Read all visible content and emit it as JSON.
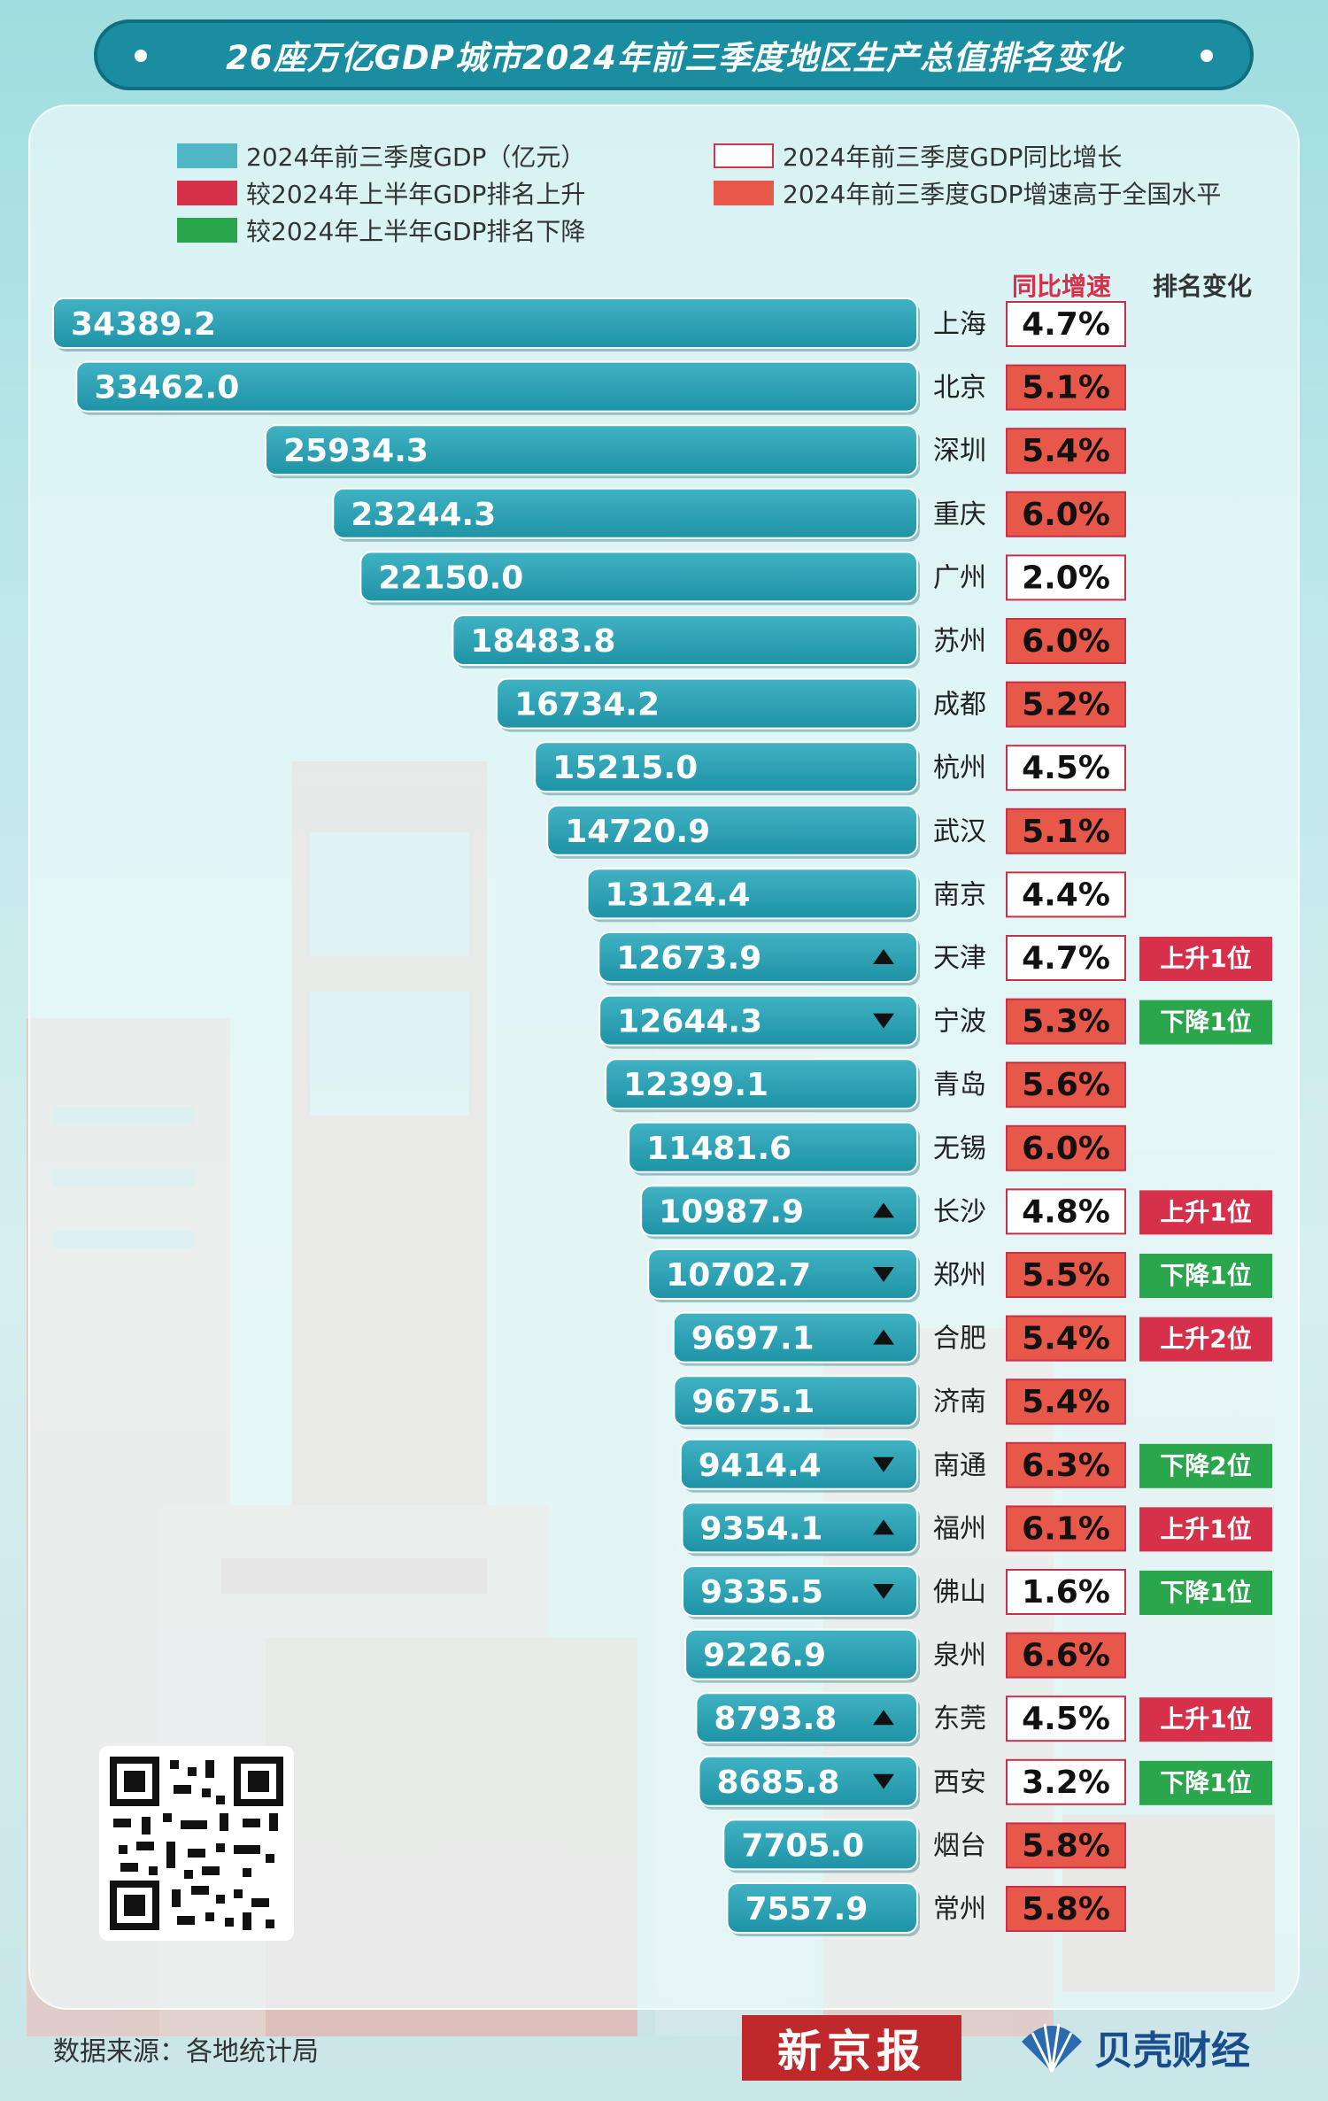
{
  "title": "26座万亿GDP城市2024年前三季度地区生产总值排名变化",
  "legend": {
    "gdp": "2024年前三季度GDP（亿元）",
    "rank_up": "较2024年上半年GDP排名上升",
    "rank_down": "较2024年上半年GDP排名下降",
    "growth": "2024年前三季度GDP同比增长",
    "above_national": "2024年前三季度GDP增速高于全国水平"
  },
  "column_headers": {
    "growth": "同比增速",
    "rank_change": "排名变化"
  },
  "colors": {
    "bar": "#1f93a6",
    "bar_light": "#3fb3c3",
    "rank_up": "#d6304a",
    "rank_down": "#2aa64c",
    "above_national": "#e8584a",
    "title_bg": "#1a8ea0"
  },
  "chart_data": {
    "type": "bar",
    "orientation": "horizontal",
    "title": "26座万亿GDP城市2024年前三季度地区生产总值排名变化",
    "unit": "亿元",
    "categories": [
      "上海",
      "北京",
      "深圳",
      "重庆",
      "广州",
      "苏州",
      "成都",
      "杭州",
      "武汉",
      "南京",
      "天津",
      "宁波",
      "青岛",
      "无锡",
      "长沙",
      "郑州",
      "合肥",
      "济南",
      "南通",
      "福州",
      "佛山",
      "泉州",
      "东莞",
      "西安",
      "烟台",
      "常州"
    ],
    "series": [
      {
        "name": "2024年前三季度GDP（亿元）",
        "values": [
          "34389.2",
          "33462.0",
          "25934.3",
          "23244.3",
          "22150.0",
          "18483.8",
          "16734.2",
          "15215.0",
          "14720.9",
          "13124.4",
          "12673.9",
          "12644.3",
          "12399.1",
          "11481.6",
          "10987.9",
          "10702.7",
          "9697.1",
          "9675.1",
          "9414.4",
          "9354.1",
          "9335.5",
          "9226.9",
          "8793.8",
          "8685.8",
          "7705.0",
          "7557.9"
        ]
      },
      {
        "name": "2024年前三季度GDP同比增长",
        "values": [
          "4.7%",
          "5.1%",
          "5.4%",
          "6.0%",
          "2.0%",
          "6.0%",
          "5.2%",
          "4.5%",
          "5.1%",
          "4.4%",
          "4.7%",
          "5.3%",
          "5.6%",
          "6.0%",
          "4.8%",
          "5.5%",
          "5.4%",
          "5.4%",
          "6.3%",
          "6.1%",
          "1.6%",
          "6.6%",
          "4.5%",
          "3.2%",
          "5.8%",
          "5.8%"
        ]
      }
    ],
    "above_national": [
      false,
      true,
      true,
      true,
      false,
      true,
      true,
      false,
      true,
      false,
      false,
      true,
      true,
      true,
      false,
      true,
      true,
      true,
      true,
      true,
      false,
      true,
      false,
      false,
      true,
      true
    ],
    "rank_change": [
      "",
      "",
      "",
      "",
      "",
      "",
      "",
      "",
      "",
      "",
      "上升1位",
      "下降1位",
      "",
      "",
      "上升1位",
      "下降1位",
      "上升2位",
      "",
      "下降2位",
      "上升1位",
      "下降1位",
      "",
      "上升1位",
      "下降1位",
      "",
      ""
    ],
    "rank_direction": [
      "",
      "",
      "",
      "",
      "",
      "",
      "",
      "",
      "",
      "",
      "up",
      "down",
      "",
      "",
      "up",
      "down",
      "up",
      "",
      "down",
      "up",
      "down",
      "",
      "up",
      "down",
      "",
      ""
    ],
    "xlim": [
      0,
      34389.2
    ]
  },
  "footer": {
    "source": "数据来源：各地统计局",
    "logo1": "新京报",
    "logo2": "贝壳财经"
  }
}
